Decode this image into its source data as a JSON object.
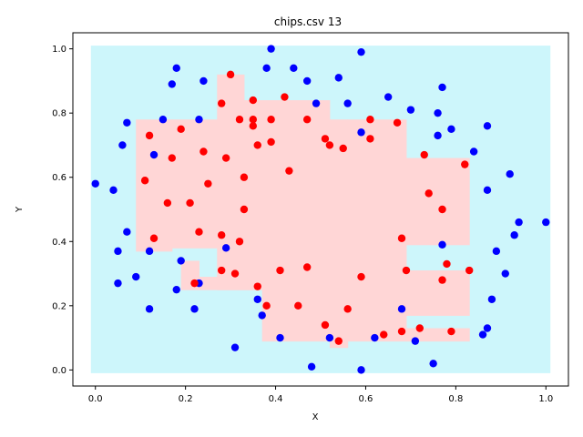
{
  "chart_data": {
    "type": "scatter",
    "title": "chips.csv 13",
    "xlabel": "X",
    "ylabel": "Y",
    "xlim": [
      -0.05,
      1.05
    ],
    "ylim": [
      -0.05,
      1.05
    ],
    "xticks": [
      "0.0",
      "0.2",
      "0.4",
      "0.6",
      "0.8",
      "1.0"
    ],
    "yticks": [
      "0.0",
      "0.2",
      "0.4",
      "0.6",
      "0.8",
      "1.0"
    ],
    "grid": false,
    "colors": {
      "blue_class": "#0000ff",
      "red_class": "#ff0000",
      "blue_region": "#cdf6fb",
      "red_region": "#ffd6d6"
    },
    "background_region": {
      "x": [
        -0.01,
        1.01
      ],
      "y": [
        -0.01,
        1.01
      ]
    },
    "red_regions": [
      [
        0.09,
        0.37,
        0.17,
        0.78
      ],
      [
        0.17,
        0.38,
        0.27,
        0.78
      ],
      [
        0.19,
        0.29,
        0.23,
        0.34
      ],
      [
        0.19,
        0.25,
        0.37,
        0.29
      ],
      [
        0.27,
        0.25,
        0.37,
        0.84
      ],
      [
        0.27,
        0.84,
        0.33,
        0.92
      ],
      [
        0.37,
        0.09,
        0.52,
        0.84
      ],
      [
        0.52,
        0.07,
        0.56,
        0.78
      ],
      [
        0.56,
        0.09,
        0.69,
        0.78
      ],
      [
        0.69,
        0.39,
        0.83,
        0.66
      ],
      [
        0.69,
        0.17,
        0.83,
        0.31
      ],
      [
        0.69,
        0.09,
        0.83,
        0.13
      ]
    ],
    "series": [
      {
        "color": "#0000ff",
        "points": [
          [
            0.0,
            0.58
          ],
          [
            0.04,
            0.56
          ],
          [
            0.05,
            0.27
          ],
          [
            0.05,
            0.37
          ],
          [
            0.06,
            0.7
          ],
          [
            0.07,
            0.43
          ],
          [
            0.07,
            0.77
          ],
          [
            0.09,
            0.29
          ],
          [
            0.12,
            0.37
          ],
          [
            0.12,
            0.19
          ],
          [
            0.13,
            0.67
          ],
          [
            0.15,
            0.78
          ],
          [
            0.17,
            0.89
          ],
          [
            0.18,
            0.25
          ],
          [
            0.18,
            0.94
          ],
          [
            0.19,
            0.34
          ],
          [
            0.22,
            0.19
          ],
          [
            0.23,
            0.78
          ],
          [
            0.23,
            0.27
          ],
          [
            0.24,
            0.9
          ],
          [
            0.29,
            0.38
          ],
          [
            0.31,
            0.07
          ],
          [
            0.36,
            0.22
          ],
          [
            0.37,
            0.17
          ],
          [
            0.38,
            0.94
          ],
          [
            0.39,
            1.0
          ],
          [
            0.41,
            0.1
          ],
          [
            0.44,
            0.94
          ],
          [
            0.47,
            0.9
          ],
          [
            0.48,
            0.01
          ],
          [
            0.49,
            0.83
          ],
          [
            0.52,
            0.1
          ],
          [
            0.54,
            0.91
          ],
          [
            0.56,
            0.83
          ],
          [
            0.59,
            0.99
          ],
          [
            0.59,
            0.0
          ],
          [
            0.59,
            0.74
          ],
          [
            0.62,
            0.1
          ],
          [
            0.65,
            0.85
          ],
          [
            0.68,
            0.19
          ],
          [
            0.7,
            0.81
          ],
          [
            0.71,
            0.09
          ],
          [
            0.75,
            0.02
          ],
          [
            0.76,
            0.73
          ],
          [
            0.76,
            0.8
          ],
          [
            0.77,
            0.88
          ],
          [
            0.77,
            0.39
          ],
          [
            0.79,
            0.75
          ],
          [
            0.84,
            0.68
          ],
          [
            0.86,
            0.11
          ],
          [
            0.87,
            0.76
          ],
          [
            0.87,
            0.56
          ],
          [
            0.87,
            0.13
          ],
          [
            0.88,
            0.22
          ],
          [
            0.89,
            0.37
          ],
          [
            0.91,
            0.3
          ],
          [
            0.92,
            0.61
          ],
          [
            0.93,
            0.42
          ],
          [
            0.94,
            0.46
          ],
          [
            1.0,
            0.46
          ]
        ]
      },
      {
        "color": "#ff0000",
        "points": [
          [
            0.11,
            0.59
          ],
          [
            0.12,
            0.73
          ],
          [
            0.13,
            0.41
          ],
          [
            0.16,
            0.52
          ],
          [
            0.17,
            0.66
          ],
          [
            0.19,
            0.75
          ],
          [
            0.21,
            0.52
          ],
          [
            0.22,
            0.27
          ],
          [
            0.23,
            0.43
          ],
          [
            0.24,
            0.68
          ],
          [
            0.25,
            0.58
          ],
          [
            0.28,
            0.42
          ],
          [
            0.28,
            0.31
          ],
          [
            0.28,
            0.83
          ],
          [
            0.29,
            0.66
          ],
          [
            0.3,
            0.92
          ],
          [
            0.31,
            0.3
          ],
          [
            0.32,
            0.4
          ],
          [
            0.32,
            0.78
          ],
          [
            0.33,
            0.6
          ],
          [
            0.33,
            0.5
          ],
          [
            0.35,
            0.76
          ],
          [
            0.35,
            0.78
          ],
          [
            0.35,
            0.84
          ],
          [
            0.36,
            0.7
          ],
          [
            0.36,
            0.26
          ],
          [
            0.38,
            0.2
          ],
          [
            0.39,
            0.71
          ],
          [
            0.39,
            0.78
          ],
          [
            0.41,
            0.31
          ],
          [
            0.42,
            0.85
          ],
          [
            0.43,
            0.62
          ],
          [
            0.45,
            0.2
          ],
          [
            0.47,
            0.78
          ],
          [
            0.47,
            0.32
          ],
          [
            0.51,
            0.72
          ],
          [
            0.51,
            0.14
          ],
          [
            0.52,
            0.7
          ],
          [
            0.54,
            0.09
          ],
          [
            0.55,
            0.69
          ],
          [
            0.56,
            0.19
          ],
          [
            0.59,
            0.29
          ],
          [
            0.61,
            0.78
          ],
          [
            0.61,
            0.72
          ],
          [
            0.64,
            0.11
          ],
          [
            0.67,
            0.77
          ],
          [
            0.68,
            0.41
          ],
          [
            0.68,
            0.12
          ],
          [
            0.69,
            0.31
          ],
          [
            0.72,
            0.13
          ],
          [
            0.73,
            0.67
          ],
          [
            0.74,
            0.55
          ],
          [
            0.77,
            0.5
          ],
          [
            0.77,
            0.28
          ],
          [
            0.78,
            0.33
          ],
          [
            0.79,
            0.12
          ],
          [
            0.82,
            0.64
          ],
          [
            0.83,
            0.31
          ]
        ]
      }
    ]
  }
}
